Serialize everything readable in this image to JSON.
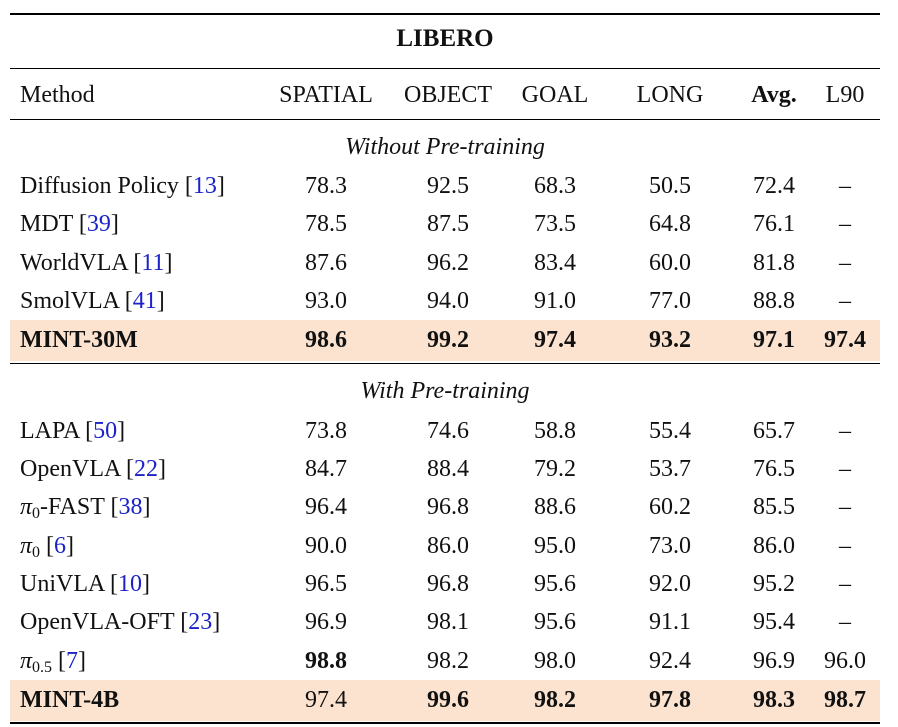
{
  "table": {
    "title": "LIBERO",
    "headers": [
      "Method",
      "SPATIAL",
      "OBJECT",
      "GOAL",
      "LONG",
      "Avg.",
      "L90"
    ],
    "sections": [
      {
        "label": "Without Pre-training",
        "rows": [
          {
            "method": "Diffusion Policy",
            "ref": "13",
            "values": [
              "78.3",
              "92.5",
              "68.3",
              "50.5",
              "72.4",
              "–"
            ]
          },
          {
            "method": "MDT",
            "ref": "39",
            "values": [
              "78.5",
              "87.5",
              "73.5",
              "64.8",
              "76.1",
              "–"
            ]
          },
          {
            "method": "WorldVLA",
            "ref": "11",
            "values": [
              "87.6",
              "96.2",
              "83.4",
              "60.0",
              "81.8",
              "–"
            ]
          },
          {
            "method": "SmolVLA",
            "ref": "41",
            "values": [
              "93.0",
              "94.0",
              "91.0",
              "77.0",
              "88.8",
              "–"
            ]
          },
          {
            "method": "MINT-30M",
            "ref": "",
            "values": [
              "98.6",
              "99.2",
              "97.4",
              "93.2",
              "97.1",
              "97.4"
            ]
          }
        ]
      },
      {
        "label": "With Pre-training",
        "rows": [
          {
            "method": "LAPA",
            "ref": "50",
            "values": [
              "73.8",
              "74.6",
              "58.8",
              "55.4",
              "65.7",
              "–"
            ]
          },
          {
            "method": "OpenVLA",
            "ref": "22",
            "values": [
              "84.7",
              "88.4",
              "79.2",
              "53.7",
              "76.5",
              "–"
            ]
          },
          {
            "method": "π",
            "sub": "0",
            "suffix": "-FAST",
            "ref": "38",
            "values": [
              "96.4",
              "96.8",
              "88.6",
              "60.2",
              "85.5",
              "–"
            ]
          },
          {
            "method": "π",
            "sub": "0",
            "suffix": "",
            "ref": "6",
            "values": [
              "90.0",
              "86.0",
              "95.0",
              "73.0",
              "86.0",
              "–"
            ]
          },
          {
            "method": "UniVLA",
            "ref": "10",
            "values": [
              "96.5",
              "96.8",
              "95.6",
              "92.0",
              "95.2",
              "–"
            ]
          },
          {
            "method": "OpenVLA-OFT",
            "ref": "23",
            "values": [
              "96.9",
              "98.1",
              "95.6",
              "91.1",
              "95.4",
              "–"
            ]
          },
          {
            "method": "π",
            "sub": "0.5",
            "suffix": "",
            "ref": "7",
            "values": [
              "98.8",
              "98.2",
              "98.0",
              "92.4",
              "96.9",
              "96.0"
            ]
          },
          {
            "method": "MINT-4B",
            "ref": "",
            "values": [
              "97.4",
              "99.6",
              "98.2",
              "97.8",
              "98.3",
              "98.7"
            ]
          }
        ]
      }
    ]
  }
}
